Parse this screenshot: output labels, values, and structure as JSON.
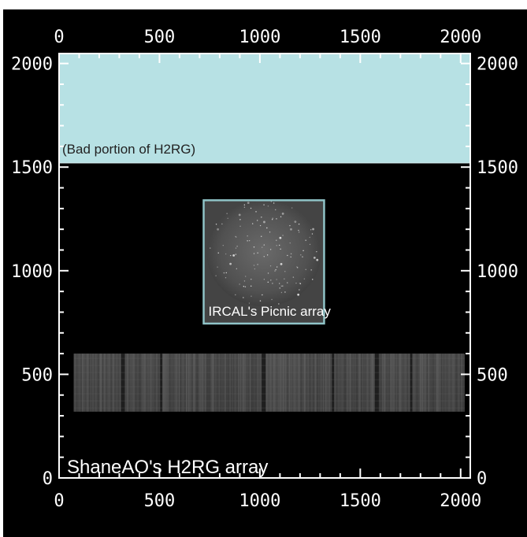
{
  "axes": {
    "x_ticks": [
      "0",
      "500",
      "1000",
      "1500",
      "2000"
    ],
    "y_ticks": [
      "0",
      "500",
      "1000",
      "1500",
      "2000"
    ],
    "range": [
      0,
      2048
    ]
  },
  "regions": {
    "bad_portion": {
      "label": "(Bad portion of H2RG)",
      "x_range": [
        0,
        2048
      ],
      "y_range": [
        1520,
        2048
      ],
      "fill": "#b7e1e4"
    },
    "picnic": {
      "label": "IRCAL's Picnic array",
      "x_range": [
        720,
        1320
      ],
      "y_range": [
        745,
        1340
      ],
      "border": "#8fc3c7"
    },
    "h2rg_strip": {
      "x_range": [
        75,
        2020
      ],
      "y_range": [
        320,
        600
      ]
    }
  },
  "title": {
    "label": "ShaneAO's H2RG array"
  },
  "colors": {
    "background": "#000000",
    "axis": "#ffffff"
  }
}
